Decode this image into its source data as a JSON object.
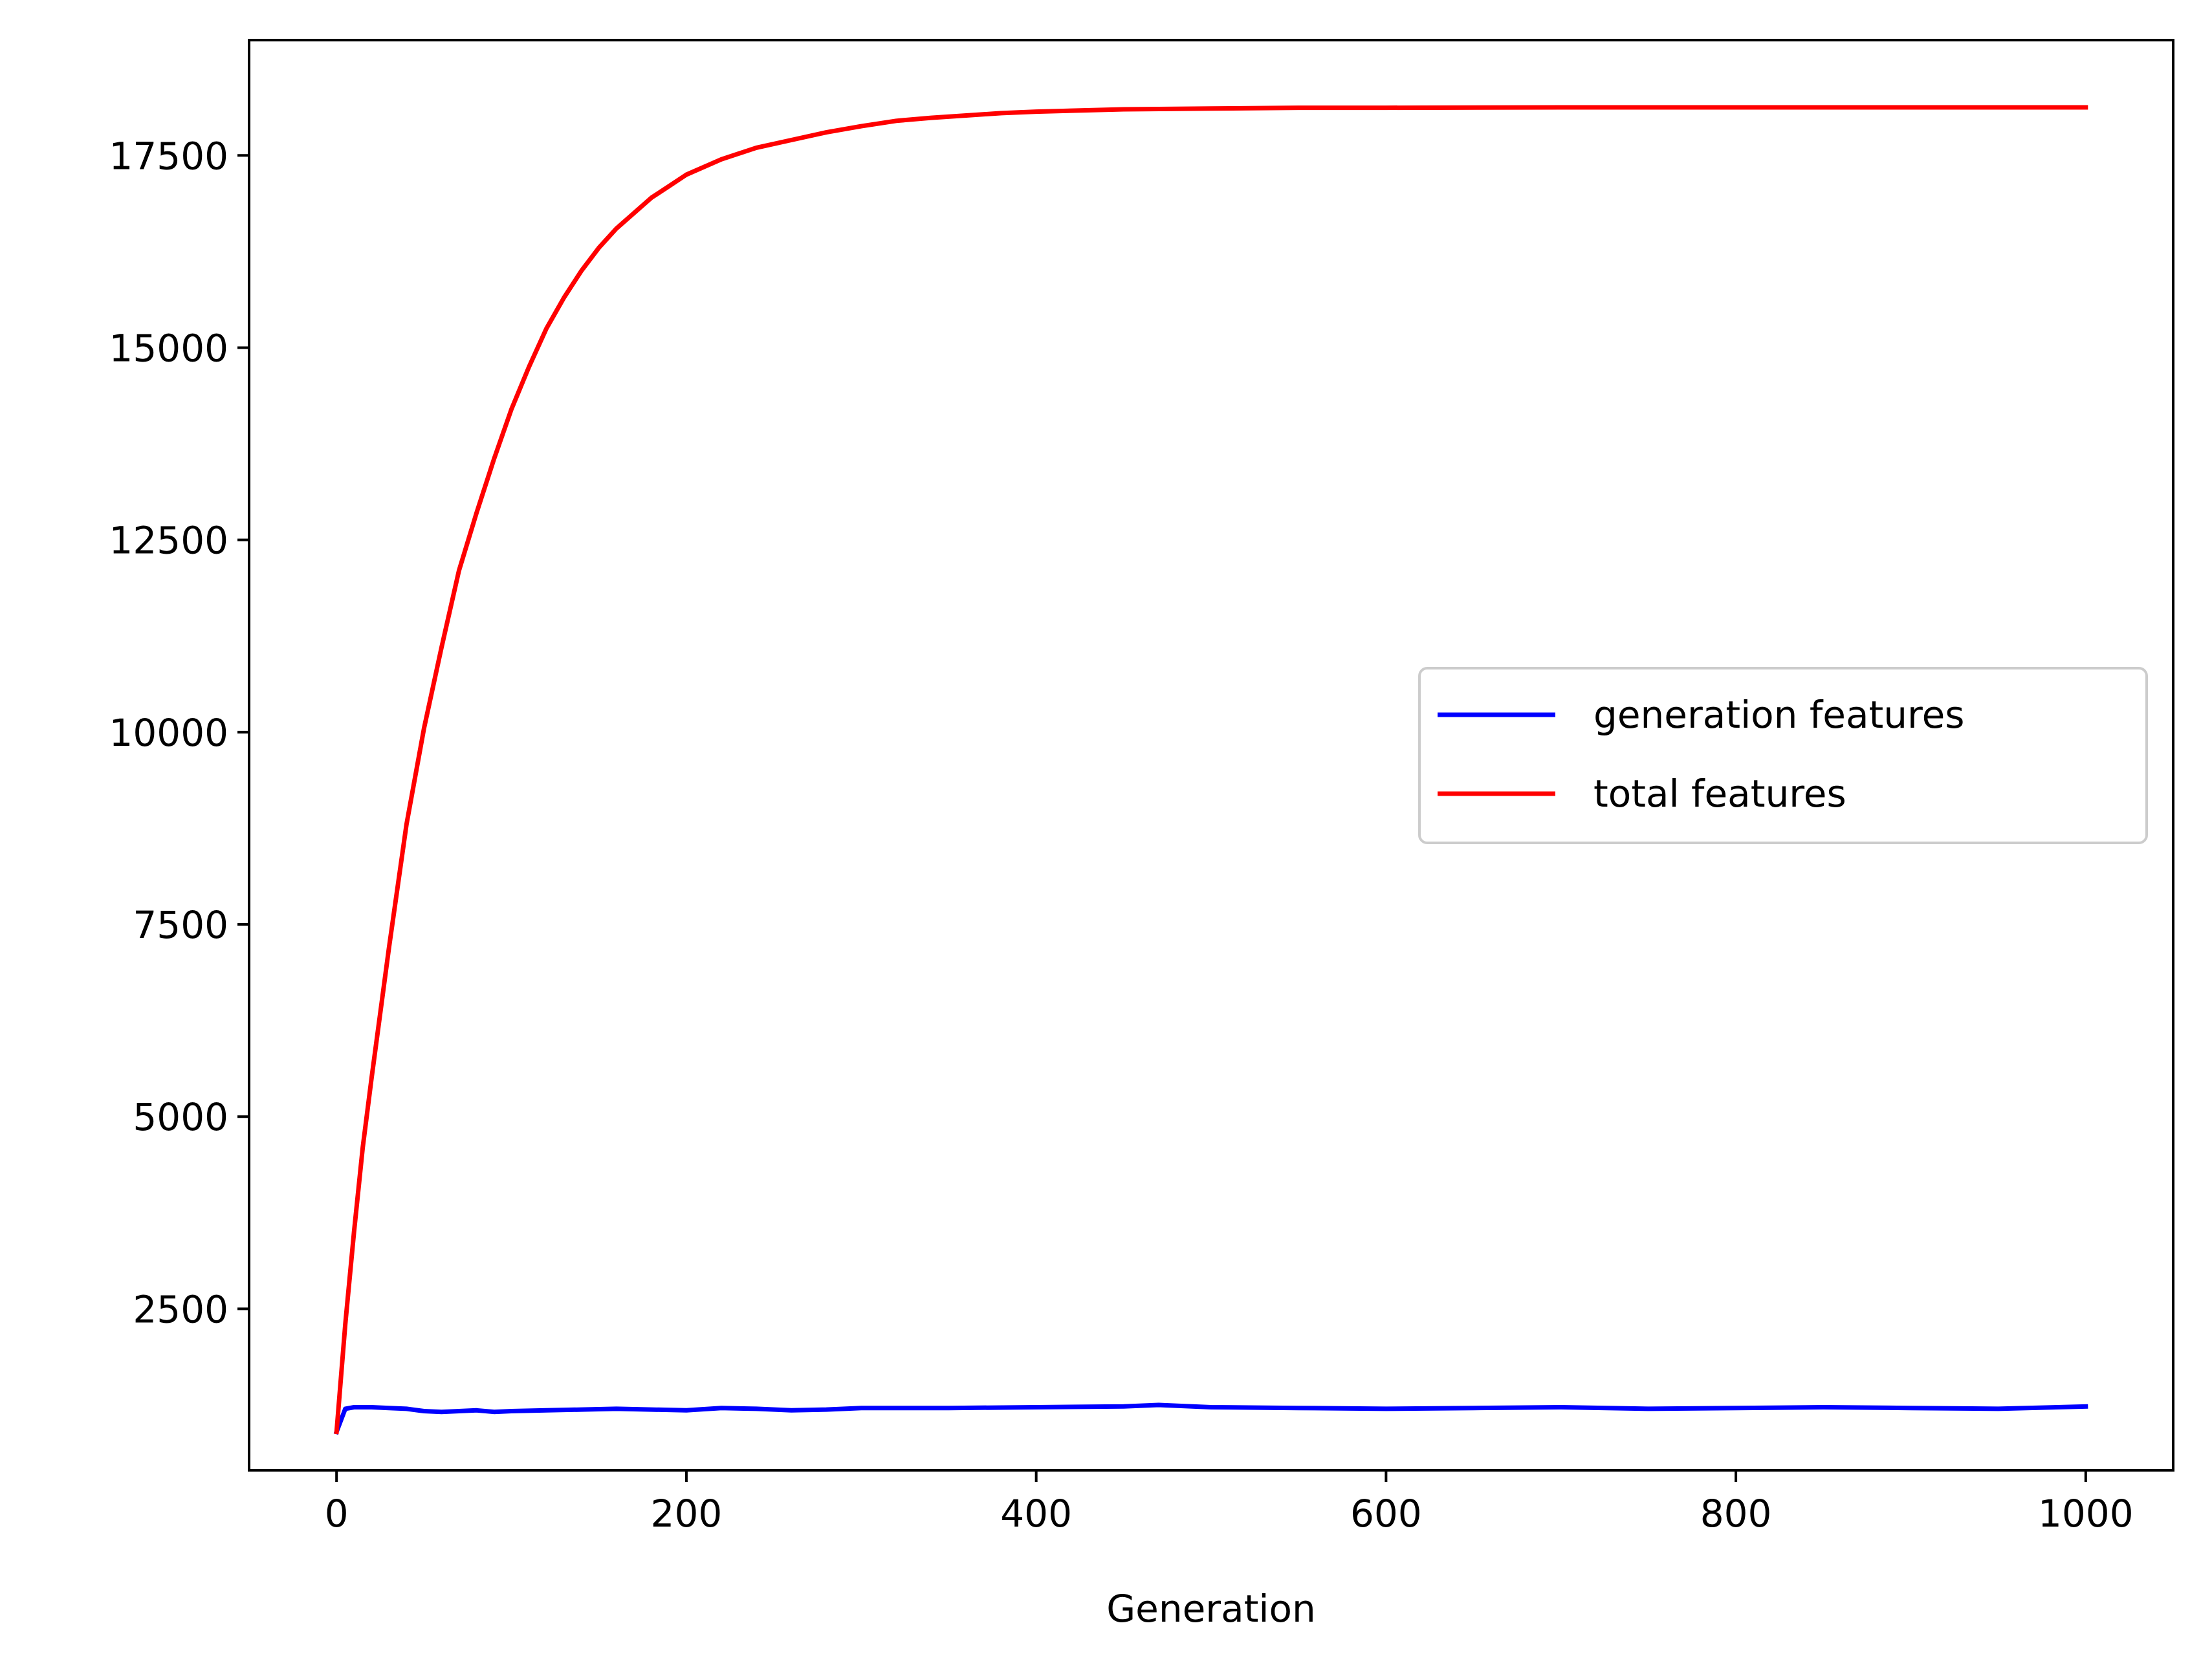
{
  "chart_data": {
    "type": "line",
    "title": "",
    "xlabel": "Generation",
    "ylabel": "",
    "xlim": [
      -50,
      1050
    ],
    "ylim": [
      400,
      19000
    ],
    "xticks": [
      0,
      200,
      400,
      600,
      800,
      1000
    ],
    "yticks": [
      2500,
      5000,
      7500,
      10000,
      12500,
      15000,
      17500
    ],
    "grid": false,
    "legend_position": "center-right",
    "series": [
      {
        "name": "generation features",
        "color": "#0000ff",
        "x": [
          0,
          5,
          10,
          20,
          30,
          40,
          50,
          60,
          70,
          80,
          90,
          100,
          120,
          140,
          160,
          180,
          200,
          220,
          240,
          260,
          280,
          300,
          350,
          400,
          450,
          470,
          500,
          550,
          600,
          650,
          700,
          750,
          800,
          850,
          900,
          950,
          1000
        ],
        "y": [
          900,
          1200,
          1220,
          1220,
          1210,
          1200,
          1170,
          1160,
          1170,
          1180,
          1160,
          1170,
          1180,
          1190,
          1200,
          1190,
          1180,
          1210,
          1200,
          1180,
          1190,
          1210,
          1210,
          1220,
          1230,
          1250,
          1220,
          1210,
          1200,
          1210,
          1220,
          1200,
          1210,
          1220,
          1210,
          1200,
          1230
        ]
      },
      {
        "name": "total features",
        "color": "#ff0000",
        "x": [
          0,
          5,
          10,
          15,
          20,
          30,
          40,
          50,
          60,
          70,
          80,
          90,
          100,
          110,
          120,
          130,
          140,
          150,
          160,
          170,
          180,
          190,
          200,
          220,
          240,
          260,
          280,
          300,
          320,
          340,
          360,
          380,
          400,
          450,
          500,
          550,
          600,
          700,
          800,
          900,
          1000
        ],
        "y": [
          900,
          2300,
          3500,
          4600,
          5500,
          7200,
          8800,
          10050,
          11100,
          12100,
          12850,
          13550,
          14200,
          14750,
          15250,
          15650,
          16000,
          16300,
          16550,
          16750,
          16950,
          17100,
          17250,
          17450,
          17600,
          17700,
          17800,
          17880,
          17950,
          17990,
          18020,
          18050,
          18070,
          18100,
          18110,
          18120,
          18120,
          18125,
          18125,
          18125,
          18125
        ]
      }
    ]
  }
}
